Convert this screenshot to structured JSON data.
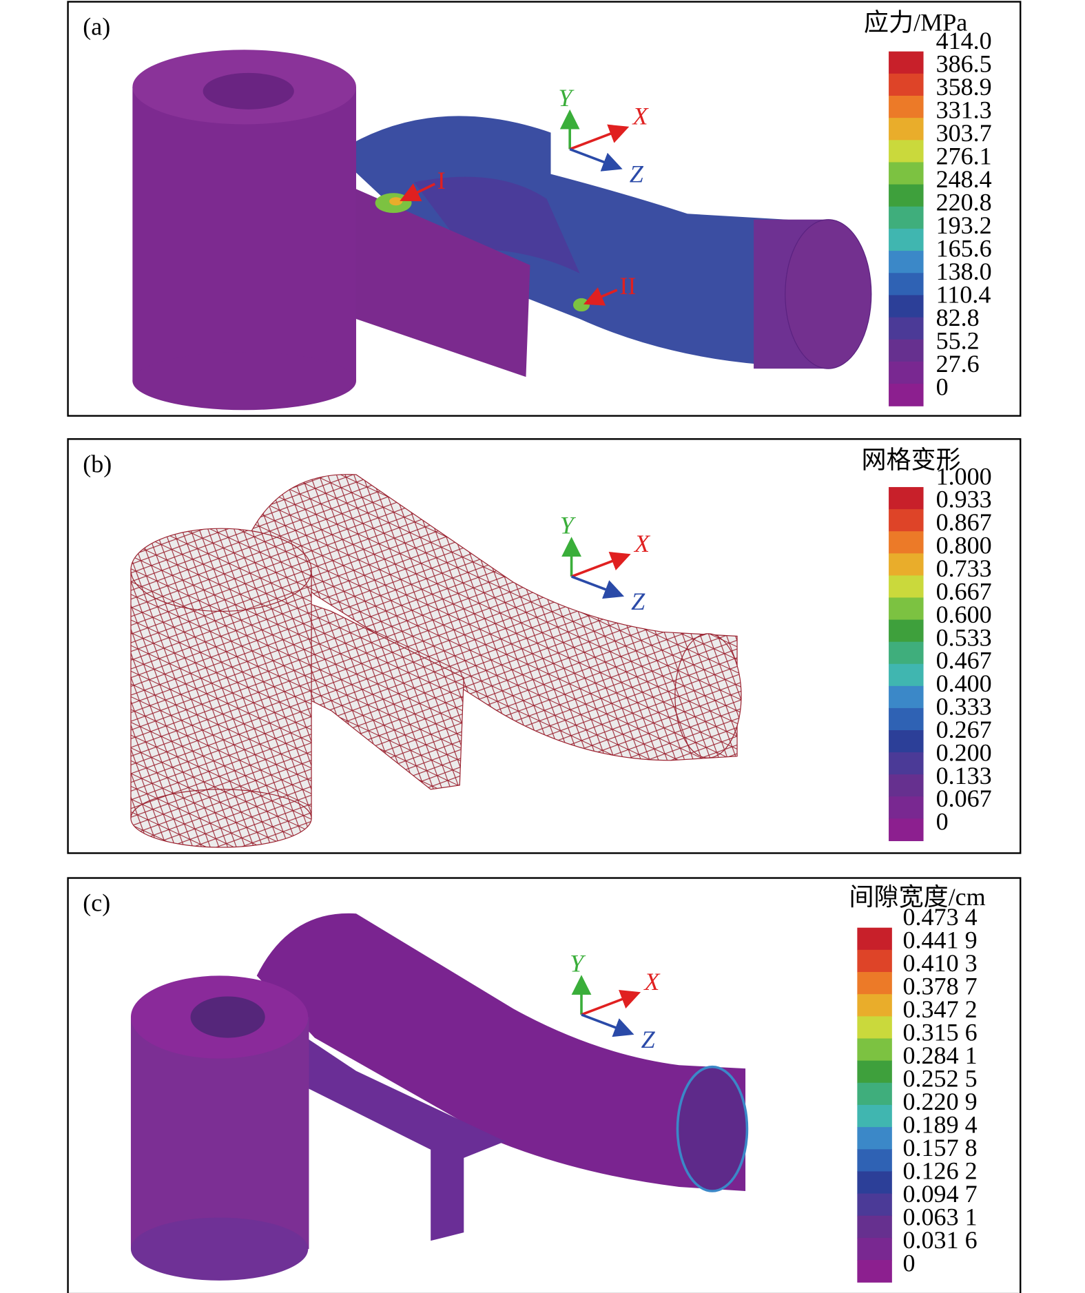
{
  "colormap": [
    "#c8202a",
    "#de4428",
    "#ec7a28",
    "#e9ad2b",
    "#cad93c",
    "#7cc241",
    "#3ea03c",
    "#3fae7c",
    "#40b6b0",
    "#3b88c8",
    "#2f62b4",
    "#2c3f98",
    "#4b3a97",
    "#66308f",
    "#792891",
    "#8c1f8f"
  ],
  "panels": [
    {
      "label": "(a)",
      "legend_title": "应力/MPa",
      "legend_labels": [
        "414.0",
        "386.5",
        "358.9",
        "331.3",
        "303.7",
        "276.1",
        "248.4",
        "220.8",
        "193.2",
        "165.6",
        "138.0",
        "110.4",
        "82.8",
        "55.2",
        "27.6",
        "0"
      ],
      "axes": {
        "y": "Y",
        "x": "X",
        "z": "Z"
      },
      "annotations": [
        "I",
        "II"
      ]
    },
    {
      "label": "(b)",
      "legend_title": "网格变形",
      "legend_labels": [
        "1.000",
        "0.933",
        "0.867",
        "0.800",
        "0.733",
        "0.667",
        "0.600",
        "0.533",
        "0.467",
        "0.400",
        "0.333",
        "0.267",
        "0.200",
        "0.133",
        "0.067",
        "0"
      ],
      "axes": {
        "y": "Y",
        "x": "X",
        "z": "Z"
      }
    },
    {
      "label": "(c)",
      "legend_title": "间隙宽度/cm",
      "legend_labels": [
        "0.473 4",
        "0.441 9",
        "0.410 3",
        "0.378 7",
        "0.347 2",
        "0.315 6",
        "0.284 1",
        "0.252 5",
        "0.220 9",
        "0.189 4",
        "0.157 8",
        "0.126 2",
        "0.094 7",
        "0.063 1",
        "0.031 6",
        "0"
      ],
      "axes": {
        "y": "Y",
        "x": "X",
        "z": "Z"
      }
    }
  ]
}
